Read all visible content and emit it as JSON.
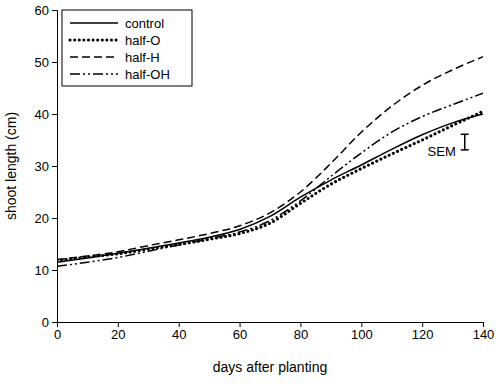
{
  "chart_data": {
    "type": "line",
    "x_label": "days after planting",
    "y_label": "shoot length (cm)",
    "x": [
      0,
      10,
      20,
      30,
      40,
      50,
      60,
      70,
      80,
      90,
      100,
      110,
      120,
      130,
      140
    ],
    "series": [
      {
        "name": "control",
        "color": "#000000",
        "line_style": "solid",
        "values": [
          11.5,
          12.3,
          13.2,
          14.2,
          15.2,
          16.3,
          17.8,
          20.3,
          24.0,
          27.3,
          30.2,
          33.2,
          36.0,
          38.3,
          40.0
        ]
      },
      {
        "name": "half-O",
        "color": "#000000",
        "line_style": "dotted",
        "values": [
          11.8,
          12.5,
          13.1,
          14.0,
          14.9,
          15.9,
          17.0,
          19.0,
          22.8,
          26.5,
          29.5,
          32.3,
          35.0,
          37.8,
          40.5
        ]
      },
      {
        "name": "half-H",
        "color": "#000000",
        "line_style": "dashed",
        "values": [
          12.0,
          12.7,
          13.5,
          14.7,
          15.8,
          17.0,
          18.5,
          21.0,
          25.0,
          30.5,
          36.5,
          41.5,
          45.5,
          48.5,
          51.0
        ]
      },
      {
        "name": "half-OH",
        "color": "#000000",
        "line_style": "dashdotdot",
        "values": [
          10.7,
          11.5,
          12.4,
          13.6,
          14.8,
          16.0,
          17.3,
          19.5,
          23.3,
          28.0,
          32.5,
          36.5,
          39.5,
          41.8,
          44.0
        ]
      }
    ],
    "error_bar": {
      "label": "SEM",
      "x": 134,
      "y": 34.6,
      "error": 1.5
    },
    "xlim": [
      0,
      140
    ],
    "xticks": [
      0,
      20,
      40,
      60,
      80,
      100,
      120,
      140
    ],
    "ylim": [
      0,
      60
    ],
    "yticks": [
      0,
      10,
      20,
      30,
      40,
      50,
      60
    ],
    "legend": "upper left",
    "grid": false
  }
}
